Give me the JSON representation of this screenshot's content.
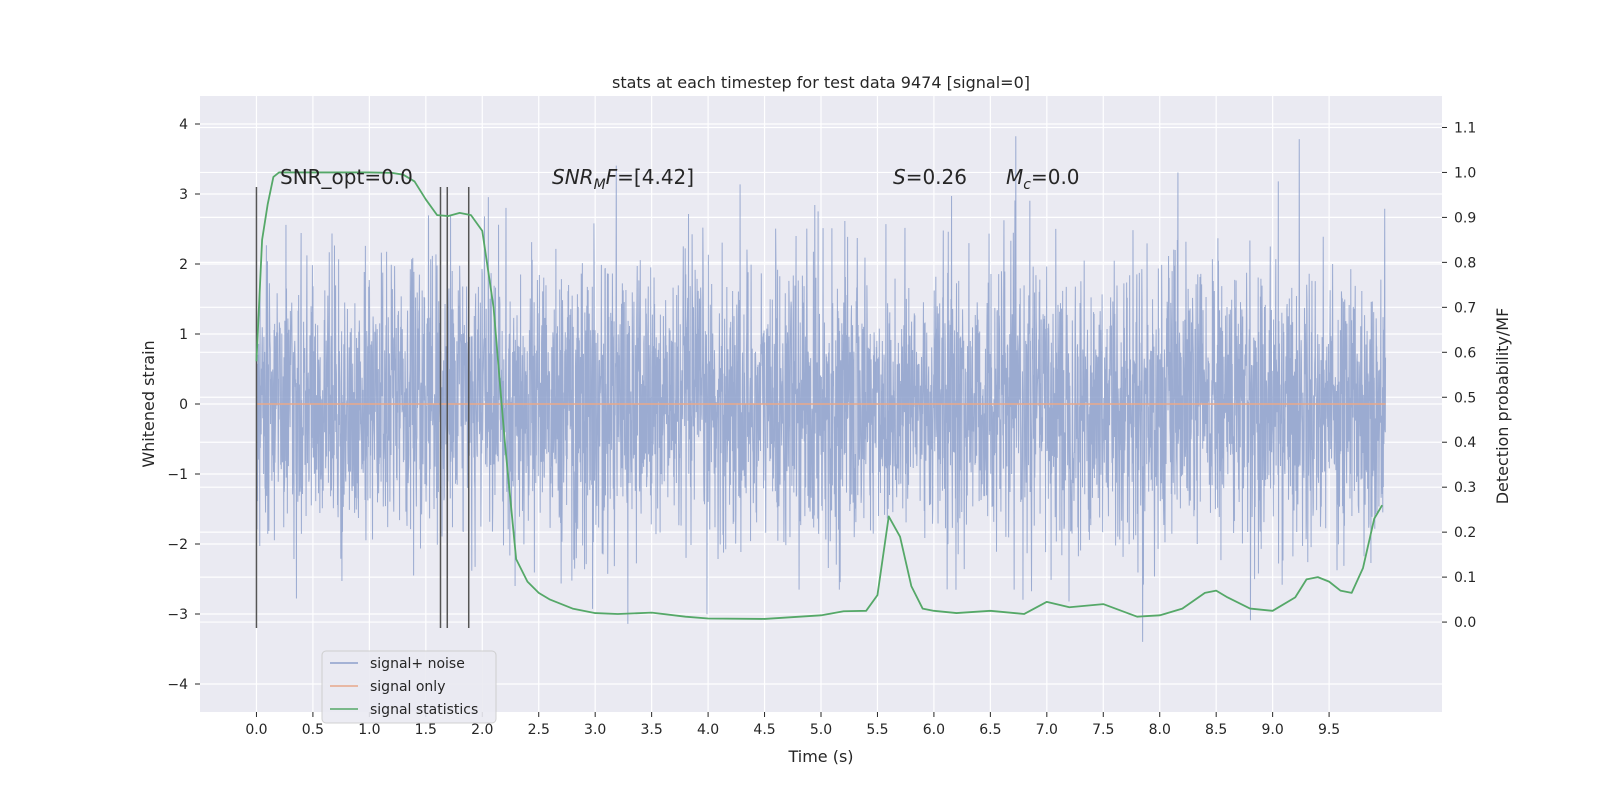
{
  "chart_data": {
    "type": "line",
    "title": "stats at each timestep for test data 9474 [signal=0]",
    "xlabel": "Time (s)",
    "ylabel_left": "Whitened strain",
    "ylabel_right": "Detection probability/MF",
    "xlim": [
      -0.5,
      10.5
    ],
    "ylim_left": [
      -4.4,
      4.4
    ],
    "ylim_right": [
      -0.2,
      1.17
    ],
    "x_ticks": [
      "0.0",
      "0.5",
      "1.0",
      "1.5",
      "2.0",
      "2.5",
      "3.0",
      "3.5",
      "4.0",
      "4.5",
      "5.0",
      "5.5",
      "6.0",
      "6.5",
      "7.0",
      "7.5",
      "8.0",
      "8.5",
      "9.0",
      "9.5"
    ],
    "y_ticks_left": [
      "4",
      "3",
      "2",
      "1",
      "0",
      "−1",
      "−2",
      "−3",
      "−4"
    ],
    "y_ticks_right": [
      "1.1",
      "1.0",
      "0.9",
      "0.8",
      "0.7",
      "0.6",
      "0.5",
      "0.4",
      "0.3",
      "0.2",
      "0.1",
      "0.0"
    ],
    "grid": true,
    "legend_position": "lower-left",
    "annotations": [
      {
        "text": "SNR_opt=0.0"
      },
      {
        "text": "=[4.42]",
        "math_base": "SNR",
        "math_sub": "M",
        "math_tail": "F"
      },
      {
        "text": "=0.26",
        "math_base": "S"
      },
      {
        "text": "=0.0",
        "math_base": "M",
        "math_sub": "c"
      }
    ],
    "vertical_markers_s": [
      0.0,
      1.63,
      1.69,
      1.88
    ],
    "series": [
      {
        "name": "signal+ noise",
        "color": "#8da0cb",
        "x_range": [
          0.0,
          10.0
        ],
        "amplitude_std": 1.0
      },
      {
        "name": "signal only",
        "color": "#e8a88a",
        "x": [
          0.0,
          10.0
        ],
        "y": [
          0.0,
          0.0
        ]
      },
      {
        "name": "signal statistics",
        "color": "#55a868",
        "axis": "right",
        "x": [
          0.0,
          0.05,
          0.1,
          0.15,
          0.2,
          0.3,
          0.5,
          0.8,
          1.0,
          1.2,
          1.3,
          1.4,
          1.5,
          1.6,
          1.7,
          1.8,
          1.9,
          2.0,
          2.1,
          2.2,
          2.3,
          2.4,
          2.5,
          2.6,
          2.8,
          3.0,
          3.2,
          3.5,
          3.8,
          4.0,
          4.5,
          5.0,
          5.2,
          5.4,
          5.5,
          5.6,
          5.7,
          5.8,
          5.9,
          6.0,
          6.2,
          6.5,
          6.8,
          7.0,
          7.2,
          7.5,
          7.8,
          8.0,
          8.2,
          8.4,
          8.5,
          8.6,
          8.8,
          9.0,
          9.2,
          9.3,
          9.4,
          9.5,
          9.6,
          9.7,
          9.8,
          9.9,
          9.97
        ],
        "y": [
          0.58,
          0.85,
          0.93,
          0.99,
          1.0,
          1.0,
          1.0,
          1.0,
          1.0,
          0.999,
          0.995,
          0.98,
          0.94,
          0.905,
          0.903,
          0.91,
          0.905,
          0.87,
          0.7,
          0.4,
          0.14,
          0.09,
          0.065,
          0.05,
          0.03,
          0.02,
          0.018,
          0.021,
          0.012,
          0.008,
          0.007,
          0.015,
          0.024,
          0.025,
          0.06,
          0.235,
          0.19,
          0.08,
          0.03,
          0.025,
          0.02,
          0.025,
          0.018,
          0.045,
          0.033,
          0.04,
          0.012,
          0.015,
          0.03,
          0.065,
          0.07,
          0.055,
          0.03,
          0.025,
          0.055,
          0.095,
          0.1,
          0.09,
          0.07,
          0.065,
          0.12,
          0.23,
          0.26
        ]
      }
    ]
  }
}
